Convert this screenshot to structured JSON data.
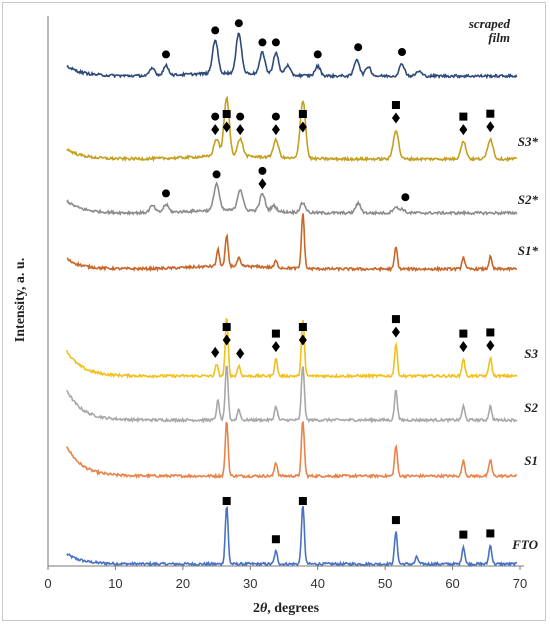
{
  "chart_data": {
    "type": "line",
    "xlabel_prefix": "2",
    "xlabel_var": "θ",
    "xlabel_suffix": ", degrees",
    "ylabel": "Intensity,  a. u.",
    "xlim": [
      0,
      70
    ],
    "xticks": [
      "0",
      "10",
      "20",
      "30",
      "40",
      "50",
      "60",
      "70"
    ],
    "grid": false,
    "series": [
      {
        "name": "FTO",
        "color": "#4a72c4",
        "peaks": [
          [
            26.5,
            1.0
          ],
          [
            33.8,
            0.22
          ],
          [
            37.8,
            1.0
          ],
          [
            51.6,
            0.55
          ],
          [
            54.7,
            0.12
          ],
          [
            61.6,
            0.3
          ],
          [
            65.6,
            0.32
          ]
        ],
        "markers": [
          {
            "symbol": "square",
            "x": 26.5
          },
          {
            "symbol": "square",
            "x": 33.8
          },
          {
            "symbol": "square",
            "x": 37.8
          },
          {
            "symbol": "square",
            "x": 51.6
          },
          {
            "symbol": "square",
            "x": 61.6
          },
          {
            "symbol": "square",
            "x": 65.6
          }
        ]
      },
      {
        "name": "S1",
        "color": "#e8834a",
        "peaks": [
          [
            26.5,
            1.0
          ],
          [
            33.8,
            0.25
          ],
          [
            37.8,
            1.0
          ],
          [
            51.6,
            0.55
          ],
          [
            61.6,
            0.28
          ],
          [
            65.6,
            0.3
          ]
        ],
        "markers": []
      },
      {
        "name": "S2",
        "color": "#a8a8a8",
        "peaks": [
          [
            25.2,
            0.35
          ],
          [
            26.5,
            1.0
          ],
          [
            28.3,
            0.2
          ],
          [
            33.8,
            0.25
          ],
          [
            37.8,
            1.0
          ],
          [
            51.6,
            0.55
          ],
          [
            61.6,
            0.25
          ],
          [
            65.6,
            0.25
          ]
        ],
        "markers": []
      },
      {
        "name": "S3",
        "color": "#f2c11c",
        "peaks": [
          [
            25.0,
            0.2
          ],
          [
            26.5,
            1.0
          ],
          [
            28.3,
            0.18
          ],
          [
            33.8,
            0.3
          ],
          [
            37.8,
            1.0
          ],
          [
            51.6,
            0.55
          ],
          [
            61.6,
            0.3
          ],
          [
            65.6,
            0.32
          ]
        ],
        "markers": [
          {
            "symbol": "diamond",
            "x": 24.8
          },
          {
            "symbol": "diamond",
            "x": 26.5
          },
          {
            "symbol": "square",
            "x": 26.5
          },
          {
            "symbol": "diamond",
            "x": 28.5
          },
          {
            "symbol": "diamond",
            "x": 33.8
          },
          {
            "symbol": "square",
            "x": 33.8
          },
          {
            "symbol": "diamond",
            "x": 37.8
          },
          {
            "symbol": "square",
            "x": 37.8
          },
          {
            "symbol": "diamond",
            "x": 51.6
          },
          {
            "symbol": "square",
            "x": 51.6
          },
          {
            "symbol": "diamond",
            "x": 61.6
          },
          {
            "symbol": "square",
            "x": 61.6
          },
          {
            "symbol": "diamond",
            "x": 65.6
          },
          {
            "symbol": "square",
            "x": 65.6
          }
        ]
      },
      {
        "name": "S1*",
        "color": "#c8672a",
        "peaks": [
          [
            25.2,
            0.3
          ],
          [
            26.5,
            0.55
          ],
          [
            28.3,
            0.15
          ],
          [
            33.8,
            0.12
          ],
          [
            37.8,
            1.0
          ],
          [
            51.6,
            0.4
          ],
          [
            61.6,
            0.22
          ],
          [
            65.6,
            0.22
          ]
        ],
        "markers": []
      },
      {
        "name": "S2*",
        "color": "#8c8c8c",
        "peaks": [
          [
            15.5,
            0.18
          ],
          [
            17.5,
            0.2
          ],
          [
            25.0,
            0.7
          ],
          [
            28.5,
            0.55
          ],
          [
            31.8,
            0.45
          ],
          [
            33.5,
            0.15
          ],
          [
            37.8,
            0.25
          ],
          [
            46.0,
            0.25
          ],
          [
            51.5,
            0.15
          ],
          [
            52.5,
            0.1
          ]
        ],
        "markers": [
          {
            "symbol": "circle",
            "x": 17.5
          },
          {
            "symbol": "circle",
            "x": 25.0
          },
          {
            "symbol": "diamond",
            "x": 31.8
          },
          {
            "symbol": "circle",
            "x": 31.8
          },
          {
            "symbol": "circle",
            "x": 53.0
          }
        ]
      },
      {
        "name": "S3*",
        "color": "#c4a021",
        "peaks": [
          [
            25.0,
            0.3
          ],
          [
            26.5,
            1.0
          ],
          [
            28.5,
            0.3
          ],
          [
            33.8,
            0.3
          ],
          [
            37.8,
            1.0
          ],
          [
            51.6,
            0.5
          ],
          [
            61.6,
            0.3
          ],
          [
            65.6,
            0.35
          ]
        ],
        "markers": [
          {
            "symbol": "diamond",
            "x": 24.8
          },
          {
            "symbol": "circle",
            "x": 24.8
          },
          {
            "symbol": "diamond",
            "x": 26.5
          },
          {
            "symbol": "square",
            "x": 26.5
          },
          {
            "symbol": "diamond",
            "x": 28.5
          },
          {
            "symbol": "circle",
            "x": 28.5
          },
          {
            "symbol": "diamond",
            "x": 33.8
          },
          {
            "symbol": "circle",
            "x": 33.8
          },
          {
            "symbol": "diamond",
            "x": 37.8
          },
          {
            "symbol": "square",
            "x": 37.8
          },
          {
            "symbol": "diamond",
            "x": 51.6
          },
          {
            "symbol": "square",
            "x": 51.6
          },
          {
            "symbol": "diamond",
            "x": 61.6
          },
          {
            "symbol": "square",
            "x": 61.6
          },
          {
            "symbol": "diamond",
            "x": 65.6
          },
          {
            "symbol": "square",
            "x": 65.6
          }
        ]
      },
      {
        "name": "scraped film",
        "color": "#2e4a78",
        "peaks": [
          [
            15.5,
            0.15
          ],
          [
            17.5,
            0.2
          ],
          [
            24.8,
            0.7
          ],
          [
            28.3,
            0.85
          ],
          [
            31.8,
            0.45
          ],
          [
            33.8,
            0.45
          ],
          [
            35.5,
            0.2
          ],
          [
            40.0,
            0.2
          ],
          [
            45.8,
            0.35
          ],
          [
            47.5,
            0.2
          ],
          [
            52.5,
            0.25
          ],
          [
            55.0,
            0.1
          ]
        ],
        "markers": [
          {
            "symbol": "circle",
            "x": 17.5
          },
          {
            "symbol": "circle",
            "x": 24.8
          },
          {
            "symbol": "circle",
            "x": 28.3
          },
          {
            "symbol": "circle",
            "x": 31.8
          },
          {
            "symbol": "circle",
            "x": 33.8
          },
          {
            "symbol": "circle",
            "x": 40.0
          },
          {
            "symbol": "circle",
            "x": 46.0
          },
          {
            "symbol": "circle",
            "x": 52.5
          }
        ]
      }
    ]
  }
}
